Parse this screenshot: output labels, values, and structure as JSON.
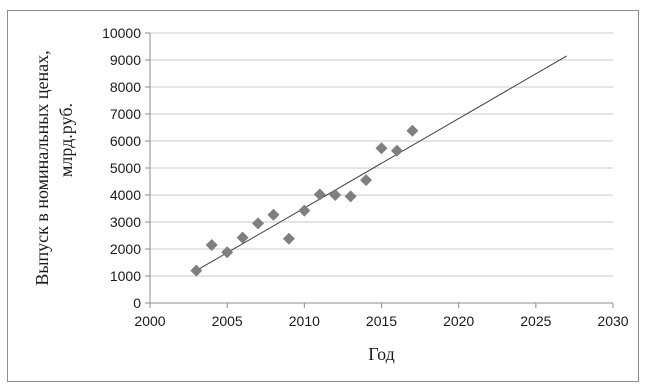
{
  "chart_data": {
    "type": "scatter",
    "xlabel": "Год",
    "ylabel_lines": [
      "Выпуск в номинальных ценах,",
      "млрд.руб."
    ],
    "xlim": [
      2000,
      2030
    ],
    "ylim": [
      0,
      10000
    ],
    "xticks": [
      2000,
      2005,
      2010,
      2015,
      2020,
      2025,
      2030
    ],
    "yticks": [
      0,
      1000,
      2000,
      3000,
      4000,
      5000,
      6000,
      7000,
      8000,
      9000,
      10000
    ],
    "grid": "horizontal",
    "marker": "diamond",
    "marker_color": "#7f7f7f",
    "line_color": "#404040",
    "points": [
      {
        "x": 2003,
        "y": 1200
      },
      {
        "x": 2004,
        "y": 2150
      },
      {
        "x": 2005,
        "y": 1880
      },
      {
        "x": 2006,
        "y": 2420
      },
      {
        "x": 2007,
        "y": 2950
      },
      {
        "x": 2008,
        "y": 3270
      },
      {
        "x": 2009,
        "y": 2380
      },
      {
        "x": 2010,
        "y": 3420
      },
      {
        "x": 2011,
        "y": 4020
      },
      {
        "x": 2012,
        "y": 4000
      },
      {
        "x": 2013,
        "y": 3950
      },
      {
        "x": 2014,
        "y": 4550
      },
      {
        "x": 2015,
        "y": 5730
      },
      {
        "x": 2016,
        "y": 5640
      },
      {
        "x": 2017,
        "y": 6380
      }
    ],
    "trendline": {
      "x": [
        2003,
        2027
      ],
      "y": [
        1200,
        9150
      ]
    }
  }
}
